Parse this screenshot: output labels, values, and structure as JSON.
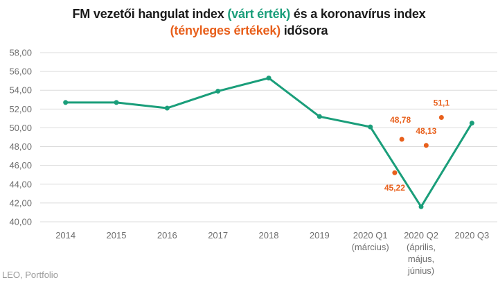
{
  "title": {
    "part1": "FM vezetői hangulat index ",
    "part2": "(várt érték)",
    "part3": " és a koronavírus index",
    "part4": "(tényleges értékek)",
    "part5": " idősora"
  },
  "source": "LEO, Portfolio",
  "colors": {
    "expected_series": "#1a9e7a",
    "actual_points": "#e8601c",
    "gridline": "#dcdcdc",
    "axis_text": "#6f6f6f"
  },
  "chart_data": {
    "type": "line",
    "ylim": [
      40,
      58
    ],
    "ytick_step": 2,
    "ytick_labels": [
      "40,00",
      "42,00",
      "44,00",
      "46,00",
      "48,00",
      "50,00",
      "52,00",
      "54,00",
      "56,00",
      "58,00"
    ],
    "grid": true,
    "legend": "none",
    "categories": [
      [
        "2014"
      ],
      [
        "2015"
      ],
      [
        "2016"
      ],
      [
        "2017"
      ],
      [
        "2018"
      ],
      [
        "2019"
      ],
      [
        "2020 Q1",
        "(március)"
      ],
      [
        "2020 Q2",
        "(április,",
        "május,",
        "június)"
      ],
      [
        "2020 Q3"
      ]
    ],
    "series": [
      {
        "style": "line-with-markers",
        "values": [
          52.7,
          52.7,
          52.1,
          53.9,
          55.3,
          51.2,
          50.1,
          41.6,
          50.5
        ]
      },
      {
        "style": "scatter",
        "points": [
          {
            "x": 6.48,
            "y": 45.22,
            "label": "45,22",
            "label_pos": "below"
          },
          {
            "x": 6.62,
            "y": 48.78,
            "label": "48,78",
            "label_pos": "above-left"
          },
          {
            "x": 7.1,
            "y": 48.13,
            "label": "48,13",
            "label_pos": "above"
          },
          {
            "x": 7.4,
            "y": 51.1,
            "label": "51,1",
            "label_pos": "above"
          }
        ]
      }
    ]
  }
}
